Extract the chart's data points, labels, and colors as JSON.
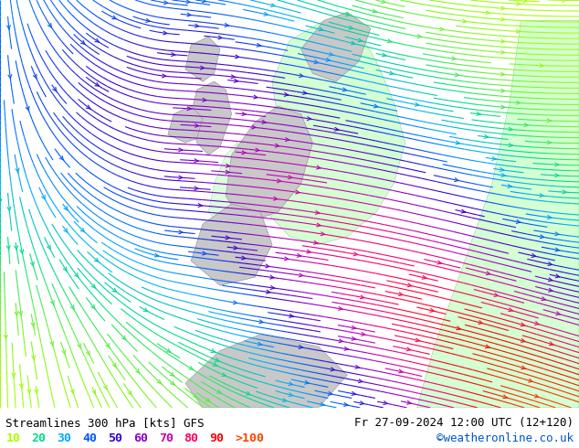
{
  "title_left": "Streamlines 300 hPa [kts] GFS",
  "title_right": "Fr 27-09-2024 12:00 UTC (12+120)",
  "credit": "©weatheronline.co.uk",
  "legend_values": [
    "10",
    "20",
    "30",
    "40",
    "50",
    "60",
    "70",
    "80",
    "90",
    ">100"
  ],
  "legend_colors": [
    "#aaff00",
    "#00dd88",
    "#00aaff",
    "#0055ff",
    "#3300cc",
    "#8800cc",
    "#cc00aa",
    "#ff0066",
    "#ff0000",
    "#ff4400"
  ],
  "bg_color": "#e0e0e0",
  "highlight_color": "#ccffcc",
  "land_gray": "#c8c8c8",
  "fig_width": 6.34,
  "fig_height": 4.9,
  "dpi": 100,
  "bottom_bar_color": "#ffffff",
  "font_color": "#000000",
  "title_fontsize": 9.0,
  "legend_fontsize": 9.5,
  "credit_color": "#0055cc"
}
